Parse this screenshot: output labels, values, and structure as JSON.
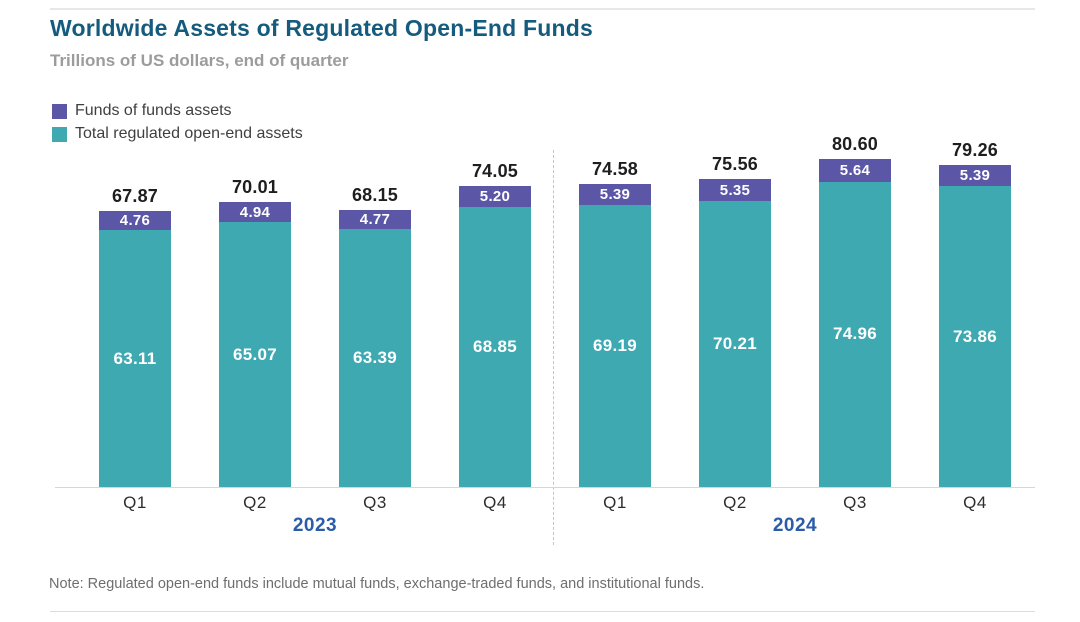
{
  "header": {
    "title": "Worldwide Assets of Regulated Open-End Funds",
    "subtitle": "Trillions of US dollars, end of quarter"
  },
  "legend": {
    "items": [
      {
        "label": "Funds of funds assets",
        "color": "#5c56a6"
      },
      {
        "label": "Total regulated open-end assets",
        "color": "#3fa9b2"
      }
    ]
  },
  "chart_data": {
    "type": "bar",
    "stacked": true,
    "title": "Worldwide Assets of Regulated Open-End Funds",
    "subtitle": "Trillions of US dollars, end of quarter",
    "categories": [
      "Q1",
      "Q2",
      "Q3",
      "Q4",
      "Q1",
      "Q2",
      "Q3",
      "Q4"
    ],
    "group_labels": [
      "2023",
      "2024"
    ],
    "series": [
      {
        "name": "Total regulated open-end assets",
        "color": "#3fa9b2",
        "values": [
          63.11,
          65.07,
          63.39,
          68.85,
          69.19,
          70.21,
          74.96,
          73.86
        ]
      },
      {
        "name": "Funds of funds assets",
        "color": "#5c56a6",
        "values": [
          4.76,
          4.94,
          4.77,
          5.2,
          5.39,
          5.35,
          5.64,
          5.39
        ]
      }
    ],
    "totals": [
      67.87,
      70.01,
      68.15,
      74.05,
      74.58,
      75.56,
      80.6,
      79.26
    ],
    "xlabel": "",
    "ylabel": "Trillions of US dollars",
    "ylim": [
      0,
      85
    ],
    "grid": false,
    "legend_position": "top-left"
  },
  "note": "Note: Regulated open-end funds include mutual funds, exchange-traded funds, and institutional funds.",
  "colors": {
    "title_blue": "#155b7e",
    "year_blue": "#2a5ca8",
    "purple": "#5c56a6",
    "teal": "#3fa9b2"
  }
}
